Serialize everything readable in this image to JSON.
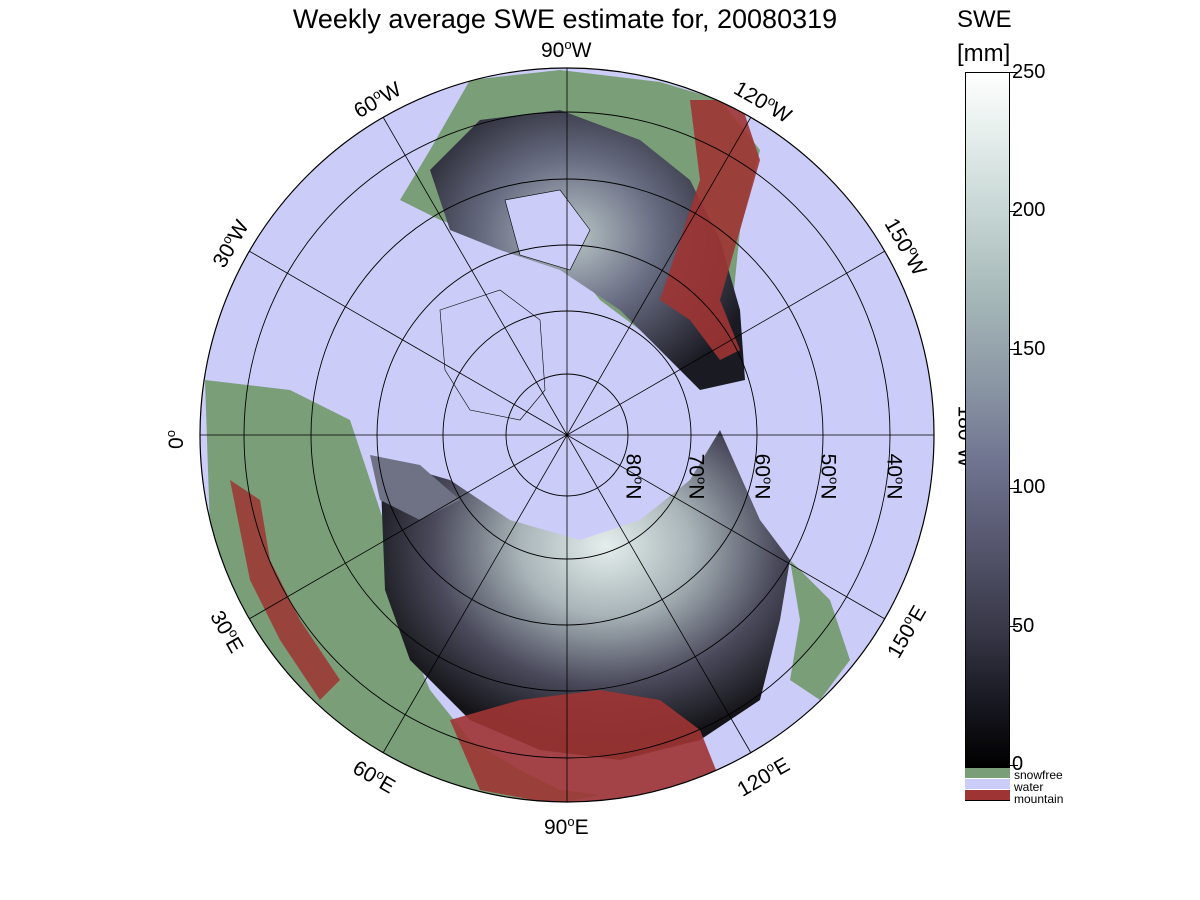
{
  "title": "Weekly average SWE estimate for, 20080319",
  "colorbar": {
    "title_line1": "SWE",
    "title_line2": "[mm]",
    "ticks": [
      "250",
      "200",
      "150",
      "100",
      "50",
      "0"
    ],
    "categories": [
      {
        "label": "snowfree",
        "color": "#7a9e78"
      },
      {
        "label": "water",
        "color": "#ccccf8"
      },
      {
        "label": "mountain",
        "color": "#9e3433"
      }
    ]
  },
  "longitude_labels": {
    "lon_90w": "90",
    "lon_90w_dir": "W",
    "lon_120w": "120",
    "lon_120w_dir": "W",
    "lon_60w": "60",
    "lon_60w_dir": "W",
    "lon_150w": "150",
    "lon_150w_dir": "W",
    "lon_30w": "30",
    "lon_30w_dir": "W",
    "lon_0": "0",
    "lon_180w": "180",
    "lon_180w_dir": "W",
    "lon_30e": "30",
    "lon_30e_dir": "E",
    "lon_150e": "150",
    "lon_150e_dir": "E",
    "lon_60e": "60",
    "lon_60e_dir": "E",
    "lon_120e": "120",
    "lon_120e_dir": "E",
    "lon_90e": "90",
    "lon_90e_dir": "E"
  },
  "latitude_labels": [
    "80",
    "70",
    "60",
    "50",
    "40"
  ],
  "latitude_dir": "N",
  "degree_symbol": "o",
  "colors": {
    "water": "#ccccf8",
    "snowfree": "#7a9e78",
    "mountain": "#9e3433",
    "swe_low": "#111116",
    "swe_high": "#dfe8e6"
  }
}
